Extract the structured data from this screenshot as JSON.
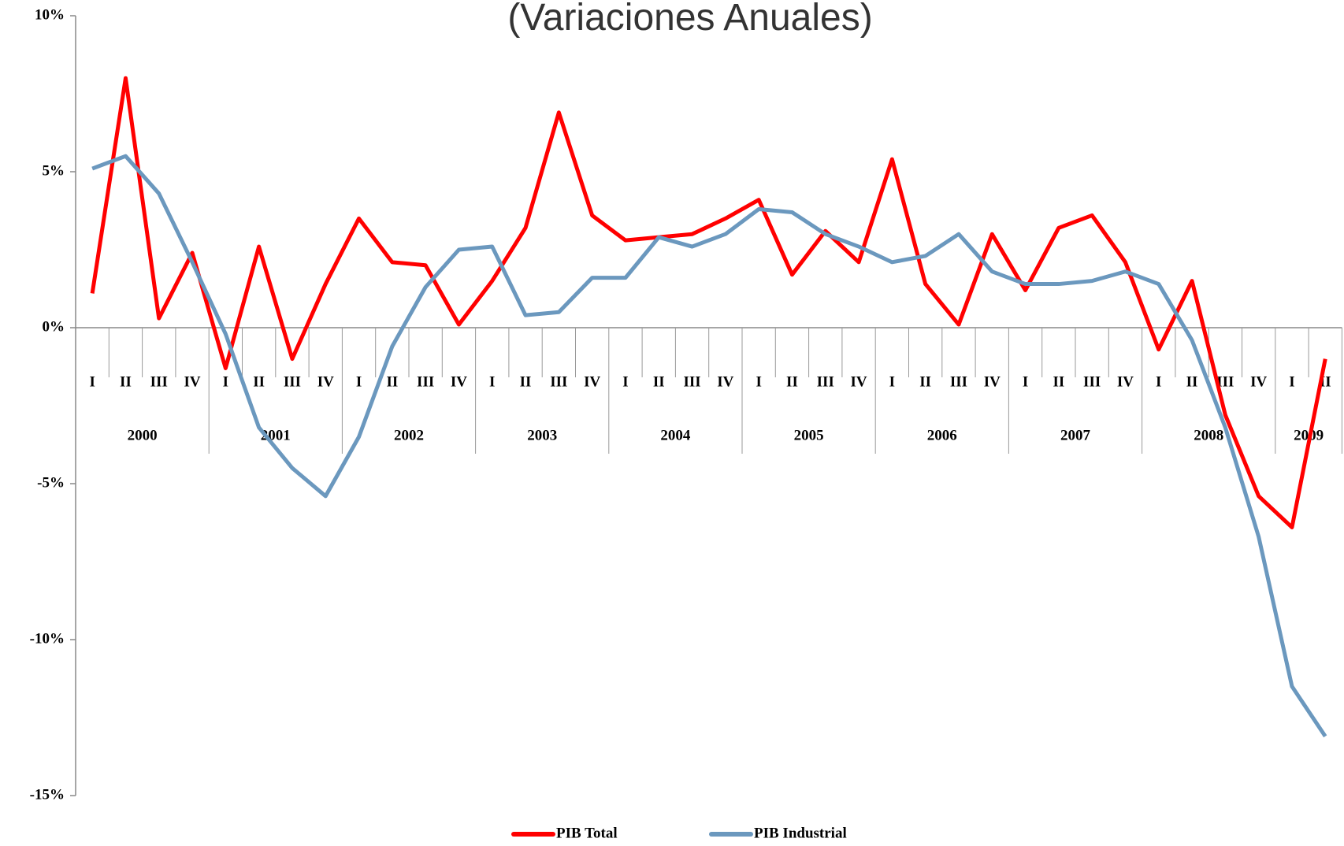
{
  "chart_data": {
    "type": "line",
    "title": "(Variaciones Anuales)",
    "categories": [
      "I",
      "II",
      "III",
      "IV",
      "I",
      "II",
      "III",
      "IV",
      "I",
      "II",
      "III",
      "IV",
      "I",
      "II",
      "III",
      "IV",
      "I",
      "II",
      "III",
      "IV",
      "I",
      "II",
      "III",
      "IV",
      "I",
      "II",
      "III",
      "IV",
      "I",
      "II",
      "III",
      "IV",
      "I",
      "II",
      "III",
      "IV",
      "I",
      "II"
    ],
    "years": [
      "2000",
      "2001",
      "2002",
      "2003",
      "2004",
      "2005",
      "2006",
      "2007",
      "2008",
      "2009"
    ],
    "series": [
      {
        "name": "PIB Total",
        "color": "#ff0000",
        "values": [
          1.1,
          8.0,
          0.3,
          2.4,
          -1.3,
          2.6,
          -1.0,
          1.4,
          3.5,
          2.1,
          2.0,
          0.1,
          1.5,
          3.2,
          6.9,
          3.6,
          2.8,
          2.9,
          3.0,
          3.5,
          4.1,
          1.7,
          3.1,
          2.1,
          5.4,
          1.4,
          0.1,
          3.0,
          1.2,
          3.2,
          3.6,
          2.1,
          -0.7,
          1.5,
          -2.8,
          -5.4,
          -6.4,
          -1.0
        ]
      },
      {
        "name": "PIB Industrial",
        "color": "#6b98be",
        "values": [
          5.1,
          5.5,
          4.3,
          2.1,
          -0.2,
          -3.2,
          -4.5,
          -5.4,
          -3.5,
          -0.6,
          1.3,
          2.5,
          2.6,
          0.4,
          0.5,
          1.6,
          1.6,
          2.9,
          2.6,
          3.0,
          3.8,
          3.7,
          3.0,
          2.6,
          2.1,
          2.3,
          3.0,
          1.8,
          1.4,
          1.4,
          1.5,
          1.8,
          1.4,
          -0.4,
          -3.2,
          -6.7,
          -11.5,
          -13.1
        ]
      }
    ],
    "ylim": [
      -15,
      10
    ],
    "yticks": [
      {
        "value": -15,
        "label": "-15%"
      },
      {
        "value": -10,
        "label": "-10%"
      },
      {
        "value": -5,
        "label": "-5%"
      },
      {
        "value": 0,
        "label": "0%"
      },
      {
        "value": 5,
        "label": "5%"
      },
      {
        "value": 10,
        "label": "10%"
      }
    ],
    "legend": "bottom"
  }
}
